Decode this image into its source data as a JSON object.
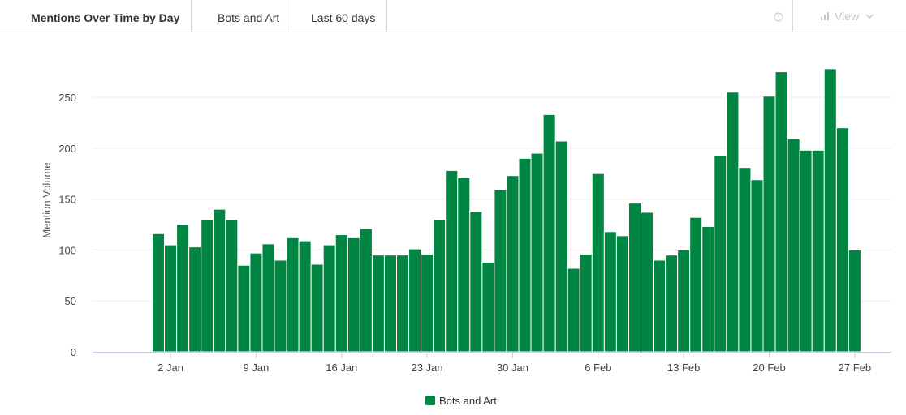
{
  "header": {
    "title": "Mentions Over Time by Day",
    "series_tab": "Bots and Art",
    "range_tab": "Last 60 days",
    "view_label": "View"
  },
  "icons": [
    "clock-icon",
    "bar-chart-icon",
    "chevron-down-icon"
  ],
  "colors": {
    "bar": "#008542",
    "grid": "#ececec",
    "axis": "#c6d2e6",
    "muted": "#c7c7c7"
  },
  "chart_data": {
    "type": "bar",
    "title": "",
    "xlabel": "",
    "ylabel": "Mention Volume",
    "ylim": [
      0,
      300
    ],
    "yticks": [
      0,
      50,
      100,
      150,
      200,
      250
    ],
    "grid": true,
    "legend": "bottom",
    "x_tick_labels": [
      {
        "label": "2 Jan",
        "index": 1
      },
      {
        "label": "9 Jan",
        "index": 8
      },
      {
        "label": "16 Jan",
        "index": 15
      },
      {
        "label": "23 Jan",
        "index": 22
      },
      {
        "label": "30 Jan",
        "index": 29
      },
      {
        "label": "6 Feb",
        "index": 36
      },
      {
        "label": "13 Feb",
        "index": 43
      },
      {
        "label": "20 Feb",
        "index": 50
      },
      {
        "label": "27 Feb",
        "index": 57
      }
    ],
    "categories": [
      "1 Jan",
      "2 Jan",
      "3 Jan",
      "4 Jan",
      "5 Jan",
      "6 Jan",
      "7 Jan",
      "8 Jan",
      "9 Jan",
      "10 Jan",
      "11 Jan",
      "12 Jan",
      "13 Jan",
      "14 Jan",
      "15 Jan",
      "16 Jan",
      "17 Jan",
      "18 Jan",
      "19 Jan",
      "20 Jan",
      "21 Jan",
      "22 Jan",
      "23 Jan",
      "24 Jan",
      "25 Jan",
      "26 Jan",
      "27 Jan",
      "28 Jan",
      "29 Jan",
      "30 Jan",
      "31 Jan",
      "1 Feb",
      "2 Feb",
      "3 Feb",
      "4 Feb",
      "5 Feb",
      "6 Feb",
      "7 Feb",
      "8 Feb",
      "9 Feb",
      "10 Feb",
      "11 Feb",
      "12 Feb",
      "13 Feb",
      "14 Feb",
      "15 Feb",
      "16 Feb",
      "17 Feb",
      "18 Feb",
      "19 Feb",
      "20 Feb",
      "21 Feb",
      "22 Feb",
      "23 Feb",
      "24 Feb",
      "25 Feb",
      "26 Feb",
      "27 Feb"
    ],
    "series": [
      {
        "name": "Bots and Art",
        "values": [
          116,
          105,
          125,
          103,
          130,
          140,
          130,
          85,
          97,
          106,
          90,
          112,
          109,
          86,
          105,
          115,
          112,
          121,
          95,
          95,
          95,
          101,
          96,
          130,
          178,
          171,
          138,
          88,
          159,
          173,
          190,
          195,
          233,
          207,
          82,
          96,
          175,
          118,
          114,
          146,
          137,
          90,
          95,
          100,
          132,
          123,
          193,
          255,
          181,
          169,
          251,
          275,
          209,
          198,
          198,
          278,
          220,
          100
        ]
      }
    ]
  }
}
